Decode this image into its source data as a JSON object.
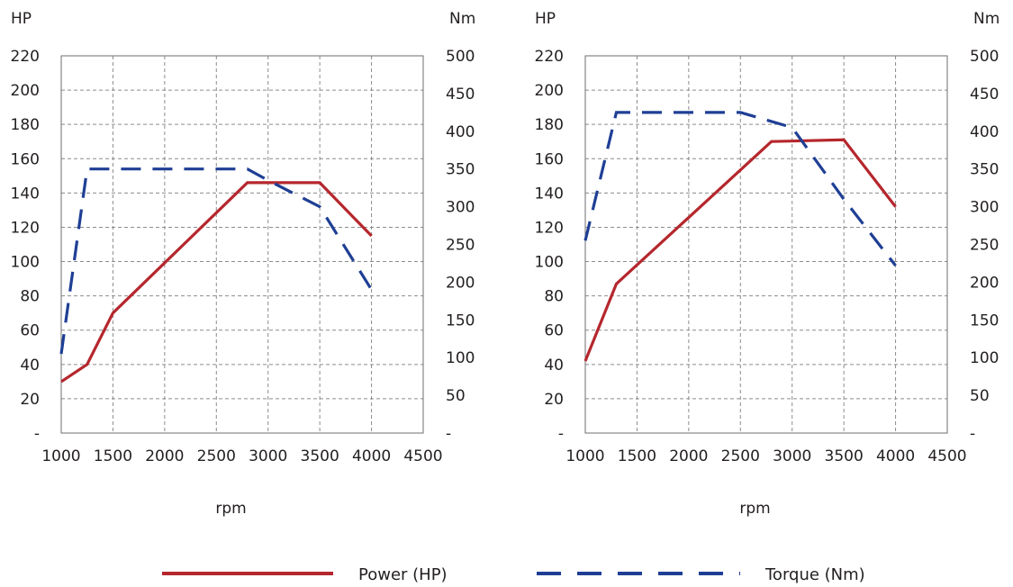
{
  "chart_data": [
    {
      "type": "line",
      "title": "",
      "xlabel": "rpm",
      "ylabel_left": "HP",
      "ylabel_right": "Nm",
      "xlim": [
        1000,
        4500
      ],
      "xticks": [
        "1000",
        "1500",
        "2000",
        "2500",
        "3000",
        "3500",
        "4000",
        "4500"
      ],
      "ylim_left": [
        0,
        220
      ],
      "yticks_left": [
        "-",
        "20",
        "40",
        "60",
        "80",
        "100",
        "120",
        "140",
        "160",
        "180",
        "200",
        "220"
      ],
      "ylim_right": [
        0,
        500
      ],
      "yticks_right": [
        "-",
        "50",
        "100",
        "150",
        "200",
        "250",
        "300",
        "350",
        "400",
        "450",
        "500"
      ],
      "grid": true,
      "series": [
        {
          "name": "Power (HP)",
          "axis": "left",
          "color": "#b5272d",
          "style": "solid",
          "x": [
            1000,
            1250,
            1500,
            2800,
            3500,
            4000
          ],
          "y": [
            30,
            40,
            70,
            146,
            146,
            115
          ]
        },
        {
          "name": "Torque (Nm)",
          "axis": "right",
          "color": "#1f3f95",
          "style": "dashed",
          "x": [
            1000,
            1250,
            2800,
            3000,
            3500,
            4000
          ],
          "y": [
            105,
            350,
            350,
            335,
            300,
            190
          ]
        }
      ]
    },
    {
      "type": "line",
      "title": "",
      "xlabel": "rpm",
      "ylabel_left": "HP",
      "ylabel_right": "Nm",
      "xlim": [
        1000,
        4500
      ],
      "xticks": [
        "1000",
        "1500",
        "2000",
        "2500",
        "3000",
        "3500",
        "4000",
        "4500"
      ],
      "ylim_left": [
        0,
        220
      ],
      "yticks_left": [
        "-",
        "20",
        "40",
        "60",
        "80",
        "100",
        "120",
        "140",
        "160",
        "180",
        "200",
        "220"
      ],
      "ylim_right": [
        0,
        500
      ],
      "yticks_right": [
        "-",
        "50",
        "100",
        "150",
        "200",
        "250",
        "300",
        "350",
        "400",
        "450",
        "500"
      ],
      "grid": true,
      "series": [
        {
          "name": "Power (HP)",
          "axis": "left",
          "color": "#b5272d",
          "style": "solid",
          "x": [
            1000,
            1300,
            2800,
            3500,
            4000
          ],
          "y": [
            42,
            87,
            170,
            171,
            132
          ]
        },
        {
          "name": "Torque (Nm)",
          "axis": "right",
          "color": "#1f3f95",
          "style": "dashed",
          "x": [
            1000,
            1300,
            2500,
            3000,
            3500,
            4000
          ],
          "y": [
            255,
            425,
            425,
            405,
            310,
            222
          ]
        }
      ]
    }
  ],
  "legend": {
    "power_label": "Power (HP)",
    "torque_label": "Torque (Nm)"
  }
}
